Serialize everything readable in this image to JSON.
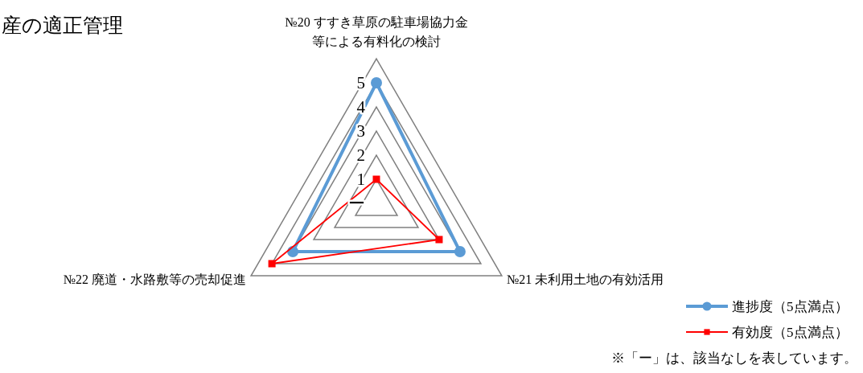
{
  "chart_data": {
    "type": "radar",
    "title": "産の適正管理",
    "categories": [
      "№20 すすき草原の駐車場協力金等による有料化の検討",
      "№21 未利用土地の有効活用",
      "№22 廃道・水路敷等の売却促進"
    ],
    "series": [
      {
        "name": "進捗度（5点満点）",
        "color": "#5b9bd5",
        "marker": "circle",
        "values": [
          5,
          4,
          4
        ]
      },
      {
        "name": "有効度（5点満点）",
        "color": "#ff0000",
        "marker": "square",
        "values": [
          1,
          3,
          5
        ]
      }
    ],
    "ylim": [
      0,
      6
    ],
    "yticks": [
      {
        "value": 0,
        "label": "ー"
      },
      1,
      2,
      3,
      4,
      5
    ],
    "grid": true,
    "legend": "bottom right",
    "annotations": [
      "※「ー」は、該当なしを表しています。"
    ]
  }
}
